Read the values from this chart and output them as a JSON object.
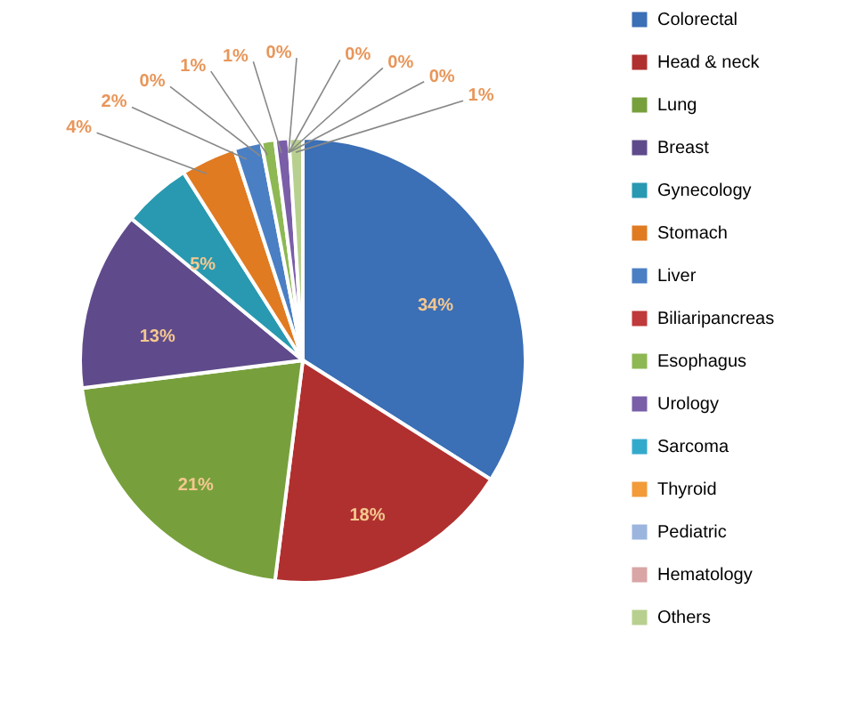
{
  "chart_data": {
    "type": "pie",
    "categories": [
      "Colorectal",
      "Head & neck",
      "Lung",
      "Breast",
      "Gynecology",
      "Stomach",
      "Liver",
      "Biliaripancreas",
      "Esophagus",
      "Urology",
      "Sarcoma",
      "Thyroid",
      "Pediatric",
      "Hematology",
      "Others"
    ],
    "values": [
      34,
      18,
      21,
      13,
      5,
      4,
      2,
      0,
      1,
      1,
      0,
      0,
      0,
      0,
      1
    ],
    "value_labels": [
      "34%",
      "18%",
      "21%",
      "13%",
      "5%",
      "4%",
      "2%",
      "0%",
      "1%",
      "1%",
      "0%",
      "0%",
      "0%",
      "0%",
      "1%"
    ],
    "colors": [
      "#3b6fb6",
      "#b0302f",
      "#77a03c",
      "#5f4b8b",
      "#2899b0",
      "#e07b22",
      "#4a7fc4",
      "#c0393b",
      "#8db853",
      "#7a5ea8",
      "#33aacc",
      "#f29b38",
      "#9bb5de",
      "#d9a5a5",
      "#b8d08f"
    ],
    "data_labels": true,
    "legend": "right"
  }
}
